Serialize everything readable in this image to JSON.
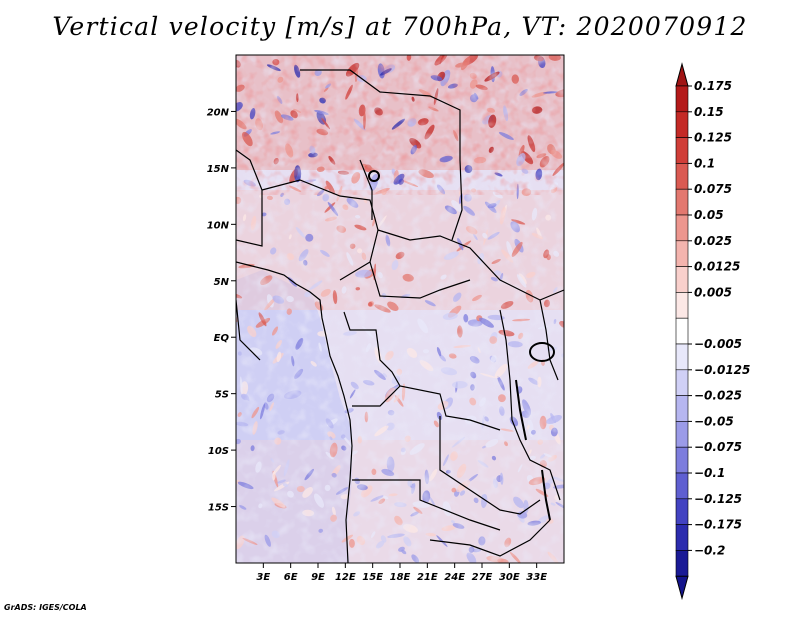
{
  "title": "Vertical velocity [m/s] at 700hPa, VT: 2020070912",
  "credit": "GrADS: IGES/COLA",
  "map": {
    "variable": "Vertical velocity",
    "units": "m/s",
    "level": "700hPa",
    "valid_time": "2020070912",
    "lon_range": [
      0,
      36
    ],
    "lat_range": [
      -20,
      25
    ],
    "lat_ticks": [
      {
        "value": 20,
        "label": "20N"
      },
      {
        "value": 15,
        "label": "15N"
      },
      {
        "value": 10,
        "label": "10N"
      },
      {
        "value": 5,
        "label": "5N"
      },
      {
        "value": 0,
        "label": "EQ"
      },
      {
        "value": -5,
        "label": "5S"
      },
      {
        "value": -10,
        "label": "10S"
      },
      {
        "value": -15,
        "label": "15S"
      }
    ],
    "lon_ticks": [
      {
        "value": 3,
        "label": "3E"
      },
      {
        "value": 6,
        "label": "6E"
      },
      {
        "value": 9,
        "label": "9E"
      },
      {
        "value": 12,
        "label": "12E"
      },
      {
        "value": 15,
        "label": "15E"
      },
      {
        "value": 18,
        "label": "18E"
      },
      {
        "value": 21,
        "label": "21E"
      },
      {
        "value": 24,
        "label": "24E"
      },
      {
        "value": 27,
        "label": "27E"
      },
      {
        "value": 30,
        "label": "30E"
      },
      {
        "value": 33,
        "label": "33E"
      }
    ]
  },
  "colorbar": {
    "levels": [
      {
        "label": "0.175",
        "color": "#b41a1a"
      },
      {
        "label": "0.15",
        "color": "#c42a26"
      },
      {
        "label": "0.125",
        "color": "#d03e38"
      },
      {
        "label": "0.1",
        "color": "#da5a52"
      },
      {
        "label": "0.075",
        "color": "#e3786f"
      },
      {
        "label": "0.05",
        "color": "#ed968e"
      },
      {
        "label": "0.025",
        "color": "#f4b4ae"
      },
      {
        "label": "0.0125",
        "color": "#f9d0cc"
      },
      {
        "label": "0.005",
        "color": "#fce8e6"
      },
      {
        "label": "",
        "color": "#ffffff"
      },
      {
        "label": "−0.005",
        "color": "#e8e8fa"
      },
      {
        "label": "−0.0125",
        "color": "#d0d0f6"
      },
      {
        "label": "−0.025",
        "color": "#b6b6f0"
      },
      {
        "label": "−0.05",
        "color": "#9b9be8"
      },
      {
        "label": "−0.075",
        "color": "#7d7ddd"
      },
      {
        "label": "−0.1",
        "color": "#5f5fd1"
      },
      {
        "label": "−0.125",
        "color": "#4343c2"
      },
      {
        "label": "−0.175",
        "color": "#2c2cae"
      },
      {
        "label": "−0.2",
        "color": "#1a1a96"
      }
    ],
    "top_arrow_color": "#a01414",
    "bottom_arrow_color": "#14148c"
  },
  "colors": {
    "ocean_base": "#d8d8f6",
    "land_base": "#eaddf0",
    "coast": "#000000"
  }
}
